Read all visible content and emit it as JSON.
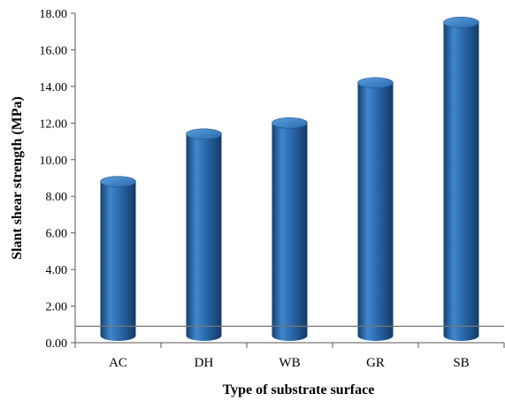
{
  "chart_data": {
    "type": "bar",
    "style": "3d-cylinder",
    "title": "",
    "xlabel": "Type of substrate surface",
    "ylabel": "Slant shear strength (MPa)",
    "categories": [
      "AC",
      "DH",
      "WB",
      "GR",
      "SB"
    ],
    "values": [
      8.8,
      11.4,
      12.0,
      14.2,
      17.5
    ],
    "ylim": [
      0,
      18
    ],
    "yticks": [
      "0.00",
      "2.00",
      "4.00",
      "6.00",
      "8.00",
      "10.00",
      "12.00",
      "14.00",
      "16.00",
      "18.00"
    ],
    "reference_line": 0.9,
    "bar_color": "#2f70b6",
    "grid": false,
    "legend": false
  }
}
